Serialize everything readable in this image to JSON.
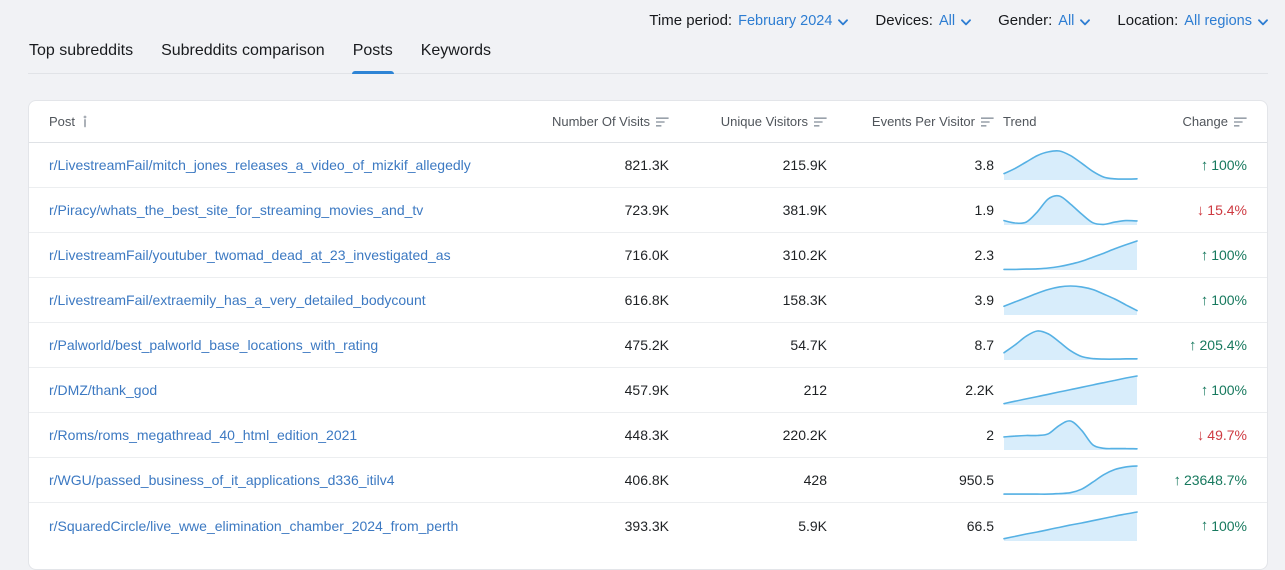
{
  "colors": {
    "accent_blue": "#2d7dd2",
    "link_blue": "#3c79c2",
    "tab_underline": "#2e84d5",
    "positive_green": "#17795e",
    "negative_red": "#ce3a41",
    "sparkline_line": "#56b1e4",
    "sparkline_fill": "#d8edfb",
    "page_background": "#f1f2f5",
    "card_background": "#ffffff"
  },
  "filters": [
    {
      "label": "Time period:",
      "value": "February 2024"
    },
    {
      "label": "Devices:",
      "value": "All"
    },
    {
      "label": "Gender:",
      "value": "All"
    },
    {
      "label": "Location:",
      "value": "All regions"
    }
  ],
  "tabs": [
    {
      "label": "Top subreddits",
      "active": false
    },
    {
      "label": "Subreddits comparison",
      "active": false
    },
    {
      "label": "Posts",
      "active": true
    },
    {
      "label": "Keywords",
      "active": false
    }
  ],
  "table": {
    "columns": [
      {
        "label": "Post",
        "align": "left",
        "icon": "info"
      },
      {
        "label": "Number Of Visits",
        "align": "right",
        "icon": "sort"
      },
      {
        "label": "Unique Visitors",
        "align": "right",
        "icon": "sort"
      },
      {
        "label": "Events Per Visitor",
        "align": "right",
        "icon": "sort"
      },
      {
        "label": "Trend",
        "align": "left",
        "icon": null
      },
      {
        "label": "Change",
        "align": "right",
        "icon": "sort"
      }
    ],
    "rows": [
      {
        "post": "r/LivestreamFail/mitch_jones_releases_a_video_of_mizkif_allegedly",
        "visits": "821.3K",
        "unique_visitors": "215.9K",
        "events_per_visitor": "3.8",
        "trend": [
          0.22,
          0.4,
          0.62,
          0.84,
          0.97,
          1.0,
          0.84,
          0.58,
          0.3,
          0.1,
          0.04,
          0.03,
          0.04
        ],
        "change": {
          "direction": "up",
          "value": "100%"
        }
      },
      {
        "post": "r/Piracy/whats_the_best_site_for_streaming_movies_and_tv",
        "visits": "723.9K",
        "unique_visitors": "381.9K",
        "events_per_visitor": "1.9",
        "trend": [
          0.15,
          0.07,
          0.1,
          0.45,
          0.9,
          1.0,
          0.72,
          0.38,
          0.08,
          0.02,
          0.1,
          0.15,
          0.14
        ],
        "change": {
          "direction": "down",
          "value": "15.4%"
        }
      },
      {
        "post": "r/LivestreamFail/youtuber_twomad_dead_at_23_investigated_as",
        "visits": "716.0K",
        "unique_visitors": "310.2K",
        "events_per_visitor": "2.3",
        "trend": [
          0.02,
          0.02,
          0.03,
          0.04,
          0.07,
          0.12,
          0.2,
          0.3,
          0.44,
          0.58,
          0.73,
          0.87,
          1.0
        ],
        "change": {
          "direction": "up",
          "value": "100%"
        }
      },
      {
        "post": "r/LivestreamFail/extraemily_has_a_very_detailed_bodycount",
        "visits": "616.8K",
        "unique_visitors": "158.3K",
        "events_per_visitor": "3.9",
        "trend": [
          0.3,
          0.45,
          0.6,
          0.75,
          0.88,
          0.97,
          1.0,
          0.97,
          0.88,
          0.72,
          0.55,
          0.35,
          0.15
        ],
        "change": {
          "direction": "up",
          "value": "100%"
        }
      },
      {
        "post": "r/Palworld/best_palworld_base_locations_with_rating",
        "visits": "475.2K",
        "unique_visitors": "54.7K",
        "events_per_visitor": "8.7",
        "trend": [
          0.25,
          0.52,
          0.82,
          1.0,
          0.9,
          0.62,
          0.32,
          0.12,
          0.05,
          0.03,
          0.03,
          0.04,
          0.04
        ],
        "change": {
          "direction": "up",
          "value": "205.4%"
        }
      },
      {
        "post": "r/DMZ/thank_god",
        "visits": "457.9K",
        "unique_visitors": "212",
        "events_per_visitor": "2.2K",
        "trend": [
          0.05,
          0.13,
          0.21,
          0.29,
          0.37,
          0.45,
          0.53,
          0.61,
          0.69,
          0.77,
          0.85,
          0.93,
          1.0
        ],
        "change": {
          "direction": "up",
          "value": "100%"
        }
      },
      {
        "post": "r/Roms/roms_megathread_40_html_edition_2021",
        "visits": "448.3K",
        "unique_visitors": "220.2K",
        "events_per_visitor": "2",
        "trend": [
          0.45,
          0.48,
          0.5,
          0.5,
          0.56,
          0.85,
          1.0,
          0.68,
          0.18,
          0.06,
          0.05,
          0.05,
          0.04
        ],
        "change": {
          "direction": "down",
          "value": "49.7%"
        }
      },
      {
        "post": "r/WGU/passed_business_of_it_applications_d336_itilv4",
        "visits": "406.8K",
        "unique_visitors": "428",
        "events_per_visitor": "950.5",
        "trend": [
          0.03,
          0.03,
          0.03,
          0.03,
          0.03,
          0.05,
          0.08,
          0.2,
          0.44,
          0.7,
          0.88,
          0.97,
          1.0
        ],
        "change": {
          "direction": "up",
          "value": "23648.7%"
        }
      },
      {
        "post": "r/SquaredCircle/live_wwe_elimination_chamber_2024_from_perth",
        "visits": "393.3K",
        "unique_visitors": "5.9K",
        "events_per_visitor": "66.5",
        "trend": [
          0.08,
          0.16,
          0.24,
          0.31,
          0.39,
          0.47,
          0.55,
          0.62,
          0.7,
          0.78,
          0.86,
          0.93,
          1.0
        ],
        "change": {
          "direction": "up",
          "value": "100%"
        }
      }
    ]
  }
}
